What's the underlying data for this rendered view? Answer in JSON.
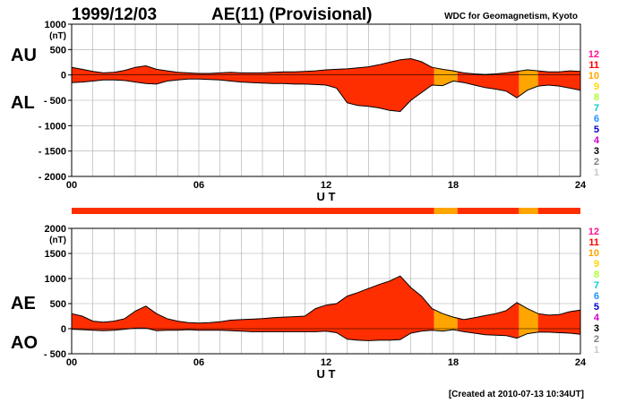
{
  "header": {
    "date": "1999/12/03",
    "index": "AE(11) (Provisional)",
    "organization": "WDC for Geomagnetism, Kyoto"
  },
  "footer": "[Created at 2010-07-13 10:34UT]",
  "colors": {
    "fill_primary": "#ff2e00",
    "fill_secondary": "#ffa500",
    "outline": "#000000",
    "grid": "#aaaaaa",
    "bar_primary": "#ff2e00",
    "bar_secondary": "#ffa500"
  },
  "station_legend": [
    {
      "label": "12",
      "color": "#ff1493"
    },
    {
      "label": "11",
      "color": "#ff0000"
    },
    {
      "label": "10",
      "color": "#ffa500"
    },
    {
      "label": "9",
      "color": "#ffd700"
    },
    {
      "label": "8",
      "color": "#adff2f"
    },
    {
      "label": "7",
      "color": "#00ced1"
    },
    {
      "label": "6",
      "color": "#1e90ff"
    },
    {
      "label": "5",
      "color": "#0000cd"
    },
    {
      "label": "4",
      "color": "#cc00cc"
    },
    {
      "label": "3",
      "color": "#000000"
    },
    {
      "label": "2",
      "color": "#808080"
    },
    {
      "label": "1",
      "color": "#c8c8c8"
    }
  ],
  "chart_data": [
    {
      "type": "area",
      "name": "AU/AL",
      "side_labels": [
        "AU",
        "AL"
      ],
      "unit": "(nT)",
      "xlabel": "U T",
      "xlim": [
        0,
        24
      ],
      "xticks": [
        "00",
        "06",
        "12",
        "18",
        "24"
      ],
      "ylim": [
        -2000,
        1000
      ],
      "yticks": [
        "1000",
        "500",
        "0",
        "- 500",
        "- 1000",
        "- 1500",
        "- 2000"
      ],
      "grid": true,
      "x": [
        0,
        0.5,
        1,
        1.5,
        2,
        2.5,
        3,
        3.5,
        4,
        4.5,
        5,
        5.5,
        6,
        6.5,
        7,
        7.5,
        8,
        8.5,
        9,
        9.5,
        10,
        10.5,
        11,
        11.5,
        12,
        12.5,
        13,
        13.5,
        14,
        14.5,
        15,
        15.5,
        16,
        16.5,
        17,
        17.5,
        18,
        18.5,
        19,
        19.5,
        20,
        20.5,
        21,
        21.5,
        22,
        22.5,
        23,
        23.5,
        24
      ],
      "series": [
        {
          "name": "AU",
          "values": [
            150,
            110,
            70,
            40,
            50,
            90,
            150,
            180,
            110,
            80,
            50,
            40,
            30,
            30,
            40,
            50,
            40,
            40,
            40,
            50,
            60,
            60,
            70,
            80,
            100,
            110,
            120,
            140,
            160,
            200,
            250,
            300,
            320,
            260,
            150,
            110,
            80,
            40,
            20,
            10,
            20,
            40,
            70,
            100,
            80,
            60,
            60,
            80,
            70
          ]
        },
        {
          "name": "AL",
          "values": [
            -150,
            -140,
            -120,
            -100,
            -100,
            -110,
            -140,
            -170,
            -180,
            -120,
            -100,
            -80,
            -80,
            -90,
            -100,
            -120,
            -140,
            -150,
            -160,
            -170,
            -170,
            -180,
            -180,
            -190,
            -200,
            -260,
            -550,
            -600,
            -620,
            -650,
            -700,
            -720,
            -500,
            -350,
            -200,
            -210,
            -120,
            -150,
            -200,
            -250,
            -280,
            -320,
            -450,
            -300,
            -220,
            -200,
            -220,
            -260,
            -300
          ]
        }
      ]
    },
    {
      "type": "area",
      "name": "AE/AO",
      "side_labels": [
        "AE",
        "AO"
      ],
      "unit": "(nT)",
      "xlabel": "U T",
      "xlim": [
        0,
        24
      ],
      "xticks": [
        "00",
        "06",
        "12",
        "18",
        "24"
      ],
      "ylim": [
        -500,
        2000
      ],
      "yticks": [
        "2000",
        "1500",
        "1000",
        "500",
        "0",
        "- 500"
      ],
      "grid": true,
      "x": [
        0,
        0.5,
        1,
        1.5,
        2,
        2.5,
        3,
        3.5,
        4,
        4.5,
        5,
        5.5,
        6,
        6.5,
        7,
        7.5,
        8,
        8.5,
        9,
        9.5,
        10,
        10.5,
        11,
        11.5,
        12,
        12.5,
        13,
        13.5,
        14,
        14.5,
        15,
        15.5,
        16,
        16.5,
        17,
        17.5,
        18,
        18.5,
        19,
        19.5,
        20,
        20.5,
        21,
        21.5,
        22,
        22.5,
        23,
        23.5,
        24
      ],
      "series": [
        {
          "name": "AE",
          "values": [
            300,
            250,
            150,
            130,
            150,
            200,
            350,
            450,
            300,
            200,
            150,
            120,
            110,
            120,
            140,
            170,
            180,
            190,
            200,
            220,
            230,
            240,
            250,
            400,
            470,
            500,
            650,
            720,
            800,
            880,
            950,
            1050,
            820,
            650,
            400,
            300,
            230,
            180,
            220,
            260,
            300,
            360,
            520,
            400,
            300,
            270,
            280,
            340,
            370
          ]
        },
        {
          "name": "AO",
          "values": [
            -10,
            -20,
            -30,
            -40,
            -30,
            -10,
            10,
            10,
            -40,
            -30,
            -30,
            -20,
            -30,
            -30,
            -30,
            -40,
            -50,
            -60,
            -60,
            -60,
            -60,
            -60,
            -60,
            -60,
            -50,
            -80,
            -210,
            -230,
            -240,
            -230,
            -230,
            -220,
            -90,
            -50,
            -30,
            -50,
            -20,
            -60,
            -90,
            -120,
            -130,
            -140,
            -190,
            -100,
            -70,
            -70,
            -80,
            -90,
            -110
          ]
        }
      ]
    }
  ],
  "station_bar": [
    {
      "start": 0,
      "end": 17.1,
      "color": "#ff2e00"
    },
    {
      "start": 17.1,
      "end": 18.2,
      "color": "#ffa500"
    },
    {
      "start": 18.2,
      "end": 21.1,
      "color": "#ff2e00"
    },
    {
      "start": 21.1,
      "end": 22.0,
      "color": "#ffa500"
    },
    {
      "start": 22.0,
      "end": 24,
      "color": "#ff2e00"
    }
  ]
}
